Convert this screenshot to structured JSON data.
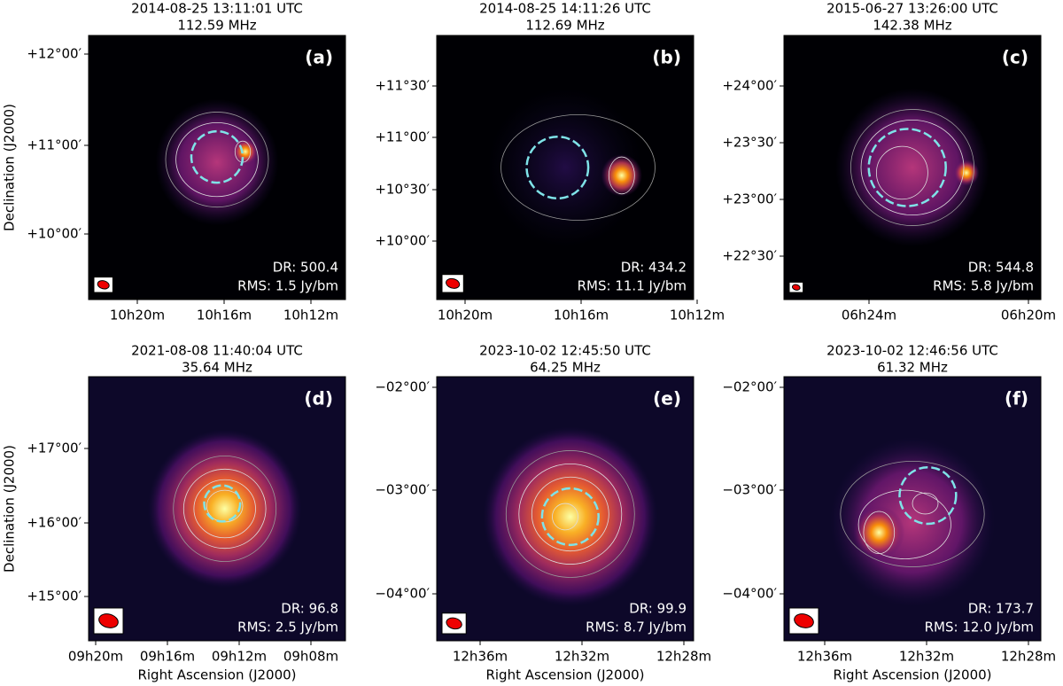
{
  "figure": {
    "panels": [
      {
        "title": "2014-08-25 13:11:01 UTC",
        "frequency": "112.59 MHz",
        "label": "(a)",
        "dr": "DR: 500.4",
        "rms": "RMS: 1.5 Jy/bm",
        "ylabel": "Declination (J2000)",
        "yticks": [
          "+12°00′",
          "+11°00′",
          "+10°00′"
        ],
        "xticks": [
          "10h20m",
          "10h16m",
          "10h12m"
        ]
      },
      {
        "title": "2014-08-25 14:11:26 UTC",
        "frequency": "112.69 MHz",
        "label": "(b)",
        "dr": "DR: 434.2",
        "rms": "RMS: 11.1 Jy/bm",
        "yticks": [
          "+11°30′",
          "+11°00′",
          "+10°30′",
          "+10°00′"
        ],
        "xticks": [
          "10h20m",
          "10h16m",
          "10h12m"
        ]
      },
      {
        "title": "2015-06-27 13:26:00 UTC",
        "frequency": "142.38 MHz",
        "label": "(c)",
        "dr": "DR: 544.8",
        "rms": "RMS: 5.8 Jy/bm",
        "yticks": [
          "+24°00′",
          "+23°30′",
          "+23°00′",
          "+22°30′"
        ],
        "xticks": [
          "06h24m",
          "06h20m"
        ]
      },
      {
        "title": "2021-08-08 11:40:04 UTC",
        "frequency": "35.64 MHz",
        "label": "(d)",
        "dr": "DR: 96.8",
        "rms": "RMS: 2.5 Jy/bm",
        "ylabel": "Declination (J2000)",
        "xlabel": "Right Ascension (J2000)",
        "yticks": [
          "+17°00′",
          "+16°00′",
          "+15°00′"
        ],
        "xticks": [
          "09h20m",
          "09h16m",
          "09h12m",
          "09h08m"
        ]
      },
      {
        "title": "2023-10-02 12:45:50 UTC",
        "frequency": "64.25 MHz",
        "label": "(e)",
        "dr": "DR: 99.9",
        "rms": "RMS: 8.7 Jy/bm",
        "xlabel": "Right Ascension (J2000)",
        "yticks": [
          "−02°00′",
          "−03°00′",
          "−04°00′"
        ],
        "xticks": [
          "12h36m",
          "12h32m",
          "12h28m"
        ]
      },
      {
        "title": "2023-10-02 12:46:56 UTC",
        "frequency": "61.32 MHz",
        "label": "(f)",
        "dr": "DR: 173.7",
        "rms": "RMS: 12.0 Jy/bm",
        "xlabel": "Right Ascension (J2000)",
        "yticks": [
          "−02°00′",
          "−03°00′",
          "−04°00′"
        ],
        "xticks": [
          "12h36m",
          "12h32m",
          "12h28m"
        ]
      }
    ]
  }
}
